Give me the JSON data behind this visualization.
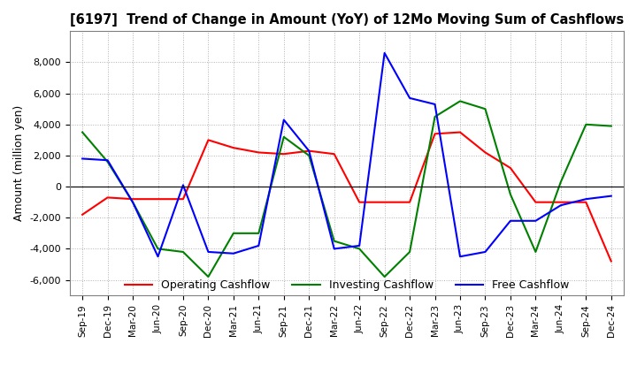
{
  "title": "[6197]  Trend of Change in Amount (YoY) of 12Mo Moving Sum of Cashflows",
  "ylabel": "Amount (million yen)",
  "x_labels": [
    "Sep-19",
    "Dec-19",
    "Mar-20",
    "Jun-20",
    "Sep-20",
    "Dec-20",
    "Mar-21",
    "Jun-21",
    "Sep-21",
    "Dec-21",
    "Mar-22",
    "Jun-22",
    "Sep-22",
    "Dec-22",
    "Mar-23",
    "Jun-23",
    "Sep-23",
    "Dec-23",
    "Mar-24",
    "Jun-24",
    "Sep-24",
    "Dec-24"
  ],
  "operating": [
    -1800,
    -700,
    -800,
    -800,
    -800,
    3000,
    2500,
    2200,
    2100,
    2300,
    2100,
    -1000,
    -1000,
    -1000,
    3400,
    3500,
    2200,
    1200,
    -1000,
    -1000,
    -1000,
    -4800
  ],
  "investing": [
    3500,
    1600,
    -1000,
    -4000,
    -4200,
    -5800,
    -3000,
    -3000,
    3200,
    2000,
    -3500,
    -4000,
    -5800,
    -4200,
    4500,
    5500,
    5000,
    -500,
    -4200,
    300,
    4000,
    3900
  ],
  "free": [
    1800,
    1700,
    -1000,
    -4500,
    100,
    -4200,
    -4300,
    -3800,
    4300,
    2300,
    -4000,
    -3800,
    8600,
    5700,
    5300,
    -4500,
    -4200,
    -2200,
    -2200,
    -1200,
    -800,
    -600
  ],
  "ylim": [
    -7000,
    10000
  ],
  "yticks": [
    -6000,
    -4000,
    -2000,
    0,
    2000,
    4000,
    6000,
    8000
  ],
  "colors": {
    "operating": "#ff0000",
    "investing": "#008000",
    "free": "#0000ff"
  },
  "legend_labels": [
    "Operating Cashflow",
    "Investing Cashflow",
    "Free Cashflow"
  ],
  "background_color": "#ffffff",
  "grid_color": "#b0b0b0"
}
